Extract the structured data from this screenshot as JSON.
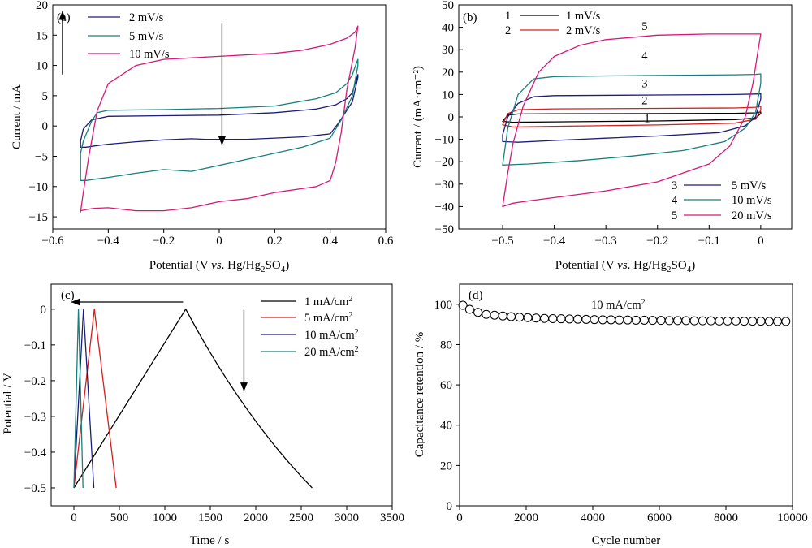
{
  "colors": {
    "black": "#000000",
    "red": "#d81e1e",
    "navy": "#1c1c7a",
    "teal": "#16807e",
    "magenta": "#d6187a"
  },
  "chart_data": [
    {
      "id": "a",
      "type": "line",
      "panel_label": "(a)",
      "xlabel_parts": [
        "Potential (V ",
        "vs",
        ". Hg/Hg",
        "2",
        "SO",
        "4",
        ")"
      ],
      "ylabel": "Current / mA",
      "xlim": [
        -0.6,
        0.6
      ],
      "ylim": [
        -17,
        20
      ],
      "xticks": [
        -0.6,
        -0.4,
        -0.2,
        0,
        0.2,
        0.4,
        0.6
      ],
      "yticks": [
        -15,
        -10,
        -5,
        0,
        5,
        10,
        15,
        20
      ],
      "xtick_labels": [
        "−0.6",
        "−0.4",
        "−0.2",
        "0",
        "0.2",
        "0.4",
        "0.6"
      ],
      "ytick_labels": [
        "−15",
        "−10",
        "−5",
        "0",
        "5",
        "10",
        "15",
        "20"
      ],
      "legend_position": "top-left",
      "series": [
        {
          "name": "2 mV/s",
          "color": "#1c1c7a",
          "x": [
            -0.5,
            -0.49,
            -0.46,
            -0.4,
            -0.2,
            0.0,
            0.2,
            0.35,
            0.42,
            0.46,
            0.48,
            0.49,
            0.5,
            0.5,
            0.48,
            0.43,
            0.4,
            0.3,
            0.1,
            -0.05,
            -0.1,
            -0.2,
            -0.3,
            -0.4,
            -0.45,
            -0.48,
            -0.5
          ],
          "y": [
            -2.5,
            -0.5,
            1.0,
            1.6,
            1.7,
            1.8,
            2.2,
            2.8,
            3.5,
            4.5,
            5.5,
            7.0,
            8.5,
            8.0,
            4.0,
            0.5,
            -1.3,
            -1.8,
            -2.2,
            -2.2,
            -2.1,
            -2.3,
            -2.6,
            -3.0,
            -3.3,
            -3.5,
            -3.5
          ]
        },
        {
          "name": "5 mV/s",
          "color": "#16807e",
          "x": [
            -0.5,
            -0.49,
            -0.46,
            -0.44,
            -0.4,
            -0.2,
            0.0,
            0.2,
            0.35,
            0.42,
            0.46,
            0.48,
            0.49,
            0.5,
            0.5,
            0.48,
            0.44,
            0.4,
            0.3,
            0.1,
            -0.05,
            -0.1,
            -0.2,
            -0.3,
            -0.4,
            -0.45,
            -0.48,
            -0.5
          ],
          "y": [
            -4.5,
            -2.5,
            0.8,
            2.2,
            2.6,
            2.7,
            2.9,
            3.3,
            4.5,
            5.5,
            7.0,
            8.5,
            9.8,
            11.0,
            10.0,
            5.0,
            1.0,
            -2.0,
            -3.5,
            -5.5,
            -7.0,
            -7.5,
            -7.2,
            -7.8,
            -8.5,
            -8.8,
            -9.0,
            -9.0
          ]
        },
        {
          "name": "10 mV/s",
          "color": "#d6187a",
          "x": [
            -0.5,
            -0.49,
            -0.47,
            -0.44,
            -0.4,
            -0.3,
            -0.2,
            0.0,
            0.2,
            0.3,
            0.4,
            0.46,
            0.49,
            0.5,
            0.49,
            0.46,
            0.44,
            0.42,
            0.4,
            0.35,
            0.2,
            0.1,
            0.0,
            -0.1,
            -0.2,
            -0.3,
            -0.4,
            -0.45,
            -0.48,
            -0.5
          ],
          "y": [
            -14.2,
            -11.0,
            -5.0,
            2.5,
            7.0,
            10.0,
            11.0,
            11.5,
            12.0,
            12.5,
            13.5,
            14.5,
            15.5,
            16.5,
            13.0,
            6.0,
            -1.0,
            -6.0,
            -9.0,
            -10.0,
            -11.0,
            -12.0,
            -12.5,
            -13.5,
            -14.0,
            -14.0,
            -13.5,
            -13.6,
            -13.8,
            -14.0
          ]
        }
      ],
      "annotations": [
        {
          "type": "arrow",
          "x": 0.01,
          "y1": 17.0,
          "y2": -3.2
        },
        {
          "type": "arrow",
          "x": -0.565,
          "y1": 8.5,
          "y2": 19.0
        }
      ]
    },
    {
      "id": "b",
      "type": "line",
      "panel_label": "(b)",
      "xlabel_parts": [
        "Potential (V ",
        "vs",
        ". Hg/Hg",
        "2",
        "SO",
        "4",
        ")"
      ],
      "ylabel": "Current / (mA·cm⁻²)",
      "xlim": [
        -0.585,
        0.06
      ],
      "ylim": [
        -50,
        50
      ],
      "xticks": [
        -0.5,
        -0.4,
        -0.3,
        -0.2,
        -0.1,
        0
      ],
      "yticks": [
        -50,
        -40,
        -30,
        -20,
        -10,
        0,
        10,
        20,
        30,
        40,
        50
      ],
      "xtick_labels": [
        "−0.5",
        "−0.4",
        "−0.3",
        "−0.2",
        "−0.1",
        "0"
      ],
      "ytick_labels": [
        "−50",
        "−40",
        "−30",
        "−20",
        "−10",
        "0",
        "10",
        "20",
        "30",
        "40",
        "50"
      ],
      "legend_position": "top-left / bottom-right",
      "series": [
        {
          "name": "1 mV/s",
          "label": "1",
          "color": "#000000",
          "x": [
            -0.5,
            -0.49,
            -0.47,
            -0.4,
            -0.2,
            -0.05,
            -0.01,
            0.0,
            0.0,
            -0.01,
            -0.05,
            -0.2,
            -0.4,
            -0.48,
            -0.5
          ],
          "y": [
            -2.0,
            0.8,
            1.3,
            1.4,
            1.5,
            1.6,
            1.8,
            2.2,
            1.5,
            -0.5,
            -1.2,
            -1.8,
            -2.2,
            -2.4,
            -2.0
          ]
        },
        {
          "name": "2 mV/s",
          "label": "2",
          "color": "#d81e1e",
          "x": [
            -0.5,
            -0.49,
            -0.47,
            -0.4,
            -0.2,
            -0.05,
            -0.01,
            0.0,
            0.0,
            -0.01,
            -0.05,
            -0.2,
            -0.4,
            -0.48,
            -0.5
          ],
          "y": [
            -3.5,
            1.5,
            3.2,
            3.6,
            3.8,
            4.0,
            4.3,
            4.8,
            3.0,
            -1.0,
            -2.8,
            -3.6,
            -4.2,
            -4.5,
            -3.5
          ]
        },
        {
          "name": "5 mV/s",
          "label": "3",
          "color": "#1c1c7a",
          "x": [
            -0.5,
            -0.49,
            -0.47,
            -0.44,
            -0.4,
            -0.2,
            -0.05,
            -0.01,
            0.0,
            0.0,
            -0.01,
            -0.03,
            -0.08,
            -0.2,
            -0.3,
            -0.4,
            -0.47,
            -0.5
          ],
          "y": [
            -8.0,
            0.0,
            6.0,
            9.0,
            9.5,
            9.8,
            10.0,
            10.2,
            10.3,
            8.0,
            0.0,
            -4.0,
            -7.0,
            -8.5,
            -9.5,
            -10.5,
            -11.3,
            -11.0
          ]
        },
        {
          "name": "10 mV/s",
          "label": "4",
          "color": "#16807e",
          "x": [
            -0.5,
            -0.49,
            -0.47,
            -0.44,
            -0.4,
            -0.3,
            -0.2,
            -0.05,
            -0.01,
            0.0,
            0.0,
            -0.01,
            -0.03,
            -0.07,
            -0.15,
            -0.25,
            -0.35,
            -0.45,
            -0.5
          ],
          "y": [
            -21.5,
            -5.0,
            10.0,
            17.0,
            18.0,
            18.3,
            18.5,
            18.8,
            19.0,
            19.2,
            15.0,
            2.0,
            -5.0,
            -11.0,
            -15.0,
            -17.5,
            -19.5,
            -21.0,
            -21.5
          ]
        },
        {
          "name": "20 mV/s",
          "label": "5",
          "color": "#d6187a",
          "x": [
            -0.5,
            -0.49,
            -0.48,
            -0.46,
            -0.43,
            -0.4,
            -0.35,
            -0.3,
            -0.2,
            -0.1,
            -0.03,
            0.0,
            -0.005,
            -0.015,
            -0.03,
            -0.06,
            -0.1,
            -0.2,
            -0.3,
            -0.4,
            -0.45,
            -0.48,
            -0.5
          ],
          "y": [
            -40.0,
            -25.0,
            -12.0,
            5.0,
            20.0,
            27.0,
            32.0,
            34.5,
            36.5,
            37.0,
            37.0,
            37.0,
            30.0,
            15.0,
            0.0,
            -13.0,
            -21.0,
            -29.0,
            -33.0,
            -36.0,
            -37.5,
            -38.5,
            -40.0
          ]
        }
      ],
      "curve_labels": [
        {
          "text": "5",
          "x": -0.225,
          "y": 40.5
        },
        {
          "text": "4",
          "x": -0.225,
          "y": 27.5
        },
        {
          "text": "3",
          "x": -0.225,
          "y": 15.0
        },
        {
          "text": "2",
          "x": -0.225,
          "y": 7.5
        },
        {
          "text": "1",
          "x": -0.22,
          "y": -0.6
        }
      ]
    },
    {
      "id": "c",
      "type": "line",
      "panel_label": "(c)",
      "xlabel": "Time / s",
      "ylabel": "Potential / V",
      "xlim": [
        -250,
        3500
      ],
      "ylim": [
        -0.55,
        0.07
      ],
      "xticks": [
        0,
        500,
        1000,
        1500,
        2000,
        2500,
        3000,
        3500
      ],
      "yticks": [
        -0.5,
        -0.4,
        -0.3,
        -0.2,
        -0.1,
        0
      ],
      "xtick_labels": [
        "0",
        "500",
        "1000",
        "1500",
        "2000",
        "2500",
        "3000",
        "3500"
      ],
      "ytick_labels": [
        "−0.5",
        "−0.4",
        "−0.3",
        "−0.2",
        "−0.1",
        "0"
      ],
      "legend_position": "top-right",
      "series": [
        {
          "name": "1 mA/cm²",
          "name_parts": [
            "1 mA/cm",
            "2"
          ],
          "color": "#000000",
          "x": [
            0,
            1230,
            2620
          ],
          "y": [
            -0.5,
            0.0,
            -0.5
          ],
          "concave": true
        },
        {
          "name": "5 mA/cm²",
          "name_parts": [
            "5 mA/cm",
            "2"
          ],
          "color": "#d81e1e",
          "x": [
            0,
            225,
            465
          ],
          "y": [
            -0.5,
            0.0,
            -0.5
          ]
        },
        {
          "name": "10 mA/cm²",
          "name_parts": [
            "10 mA/cm",
            "2"
          ],
          "color": "#1c1c7a",
          "x": [
            0,
            105,
            220
          ],
          "y": [
            -0.5,
            0.0,
            -0.5
          ]
        },
        {
          "name": "20 mA/cm²",
          "name_parts": [
            "20 mA/cm",
            "2"
          ],
          "color": "#16807e",
          "x": [
            0,
            50,
            100
          ],
          "y": [
            -0.5,
            0.0,
            -0.5
          ]
        }
      ],
      "annotations": [
        {
          "type": "arrow",
          "x1": 1200,
          "x2": -30,
          "y": 0.02
        },
        {
          "type": "arrow",
          "x": 1870,
          "y1": -0.002,
          "y2": -0.23
        }
      ]
    },
    {
      "id": "d",
      "type": "scatter",
      "panel_label": "(d)",
      "xlabel": "Cycle number",
      "ylabel": "Capacitance retention / %",
      "xlim": [
        0,
        10000
      ],
      "ylim": [
        0,
        110
      ],
      "xticks": [
        0,
        2000,
        4000,
        6000,
        8000,
        10000
      ],
      "yticks": [
        0,
        20,
        40,
        60,
        80,
        100
      ],
      "xtick_labels": [
        "0",
        "2000",
        "4000",
        "6000",
        "8000",
        "10000"
      ],
      "ytick_labels": [
        "0",
        "20",
        "40",
        "60",
        "80",
        "100"
      ],
      "annotation_text": "10 mA/cm²",
      "annotation_parts": [
        "10 mA/cm",
        "2"
      ],
      "series": [
        {
          "name": "",
          "color": "#000000",
          "x": [
            100,
            300,
            550,
            800,
            1050,
            1300,
            1550,
            1800,
            2050,
            2300,
            2550,
            2800,
            3050,
            3300,
            3550,
            3800,
            4050,
            4300,
            4550,
            4800,
            5050,
            5300,
            5550,
            5800,
            6050,
            6300,
            6550,
            6800,
            7050,
            7300,
            7550,
            7800,
            8050,
            8300,
            8550,
            8800,
            9050,
            9300,
            9550,
            9800
          ],
          "y": [
            99.5,
            97.5,
            96.0,
            95.0,
            94.6,
            94.2,
            93.9,
            93.6,
            93.4,
            93.2,
            93.0,
            92.9,
            92.8,
            92.7,
            92.6,
            92.5,
            92.4,
            92.3,
            92.3,
            92.2,
            92.2,
            92.1,
            92.1,
            92.0,
            92.0,
            91.9,
            91.9,
            91.9,
            91.8,
            91.8,
            91.8,
            91.7,
            91.7,
            91.7,
            91.6,
            91.6,
            91.6,
            91.5,
            91.5,
            91.5
          ]
        }
      ]
    }
  ]
}
